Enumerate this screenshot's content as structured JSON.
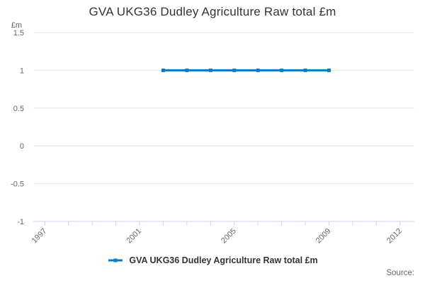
{
  "title": "GVA UKG36 Dudley Agriculture Raw total £m",
  "source_label": "Source:",
  "legend": {
    "label": "GVA UKG36 Dudley Agriculture Raw total £m"
  },
  "y_axis": {
    "unit_label": "£m",
    "ticks": [
      {
        "value": 1.5,
        "label": "1.5"
      },
      {
        "value": 1,
        "label": "1"
      },
      {
        "value": 0.5,
        "label": "0.5"
      },
      {
        "value": 0,
        "label": "0"
      },
      {
        "value": -0.5,
        "label": "-0.5"
      },
      {
        "value": -1,
        "label": "-1"
      }
    ]
  },
  "x_axis": {
    "tick_years": [
      1997,
      1998,
      1999,
      2000,
      2001,
      2002,
      2003,
      2004,
      2005,
      2006,
      2007,
      2008,
      2009,
      2010,
      2011,
      2012
    ],
    "labeled_years": [
      "1997",
      "2001",
      "2005",
      "2009",
      "2012"
    ]
  },
  "chart_data": {
    "type": "line",
    "title": "GVA UKG36 Dudley Agriculture Raw total £m",
    "series": [
      {
        "name": "GVA UKG36 Dudley Agriculture Raw total £m",
        "x": [
          2002,
          2003,
          2004,
          2005,
          2006,
          2007,
          2008,
          2009
        ],
        "values": [
          1,
          1,
          1,
          1,
          1,
          1,
          1,
          1
        ]
      }
    ],
    "xlabel": "",
    "ylabel": "£m",
    "ylim": [
      -1,
      1.5
    ],
    "xlim": [
      1996.5,
      2012.6
    ],
    "grid": "horizontal-only",
    "legend_position": "bottom-center",
    "marker": "square"
  },
  "colors": {
    "series": "#007dc3",
    "grid": "#e6e6e6",
    "axis": "#ccd6eb",
    "tick_label": "#666666",
    "title_text": "#333333",
    "legend_text": "#333333",
    "source_text": "#666666",
    "background": "#ffffff"
  }
}
